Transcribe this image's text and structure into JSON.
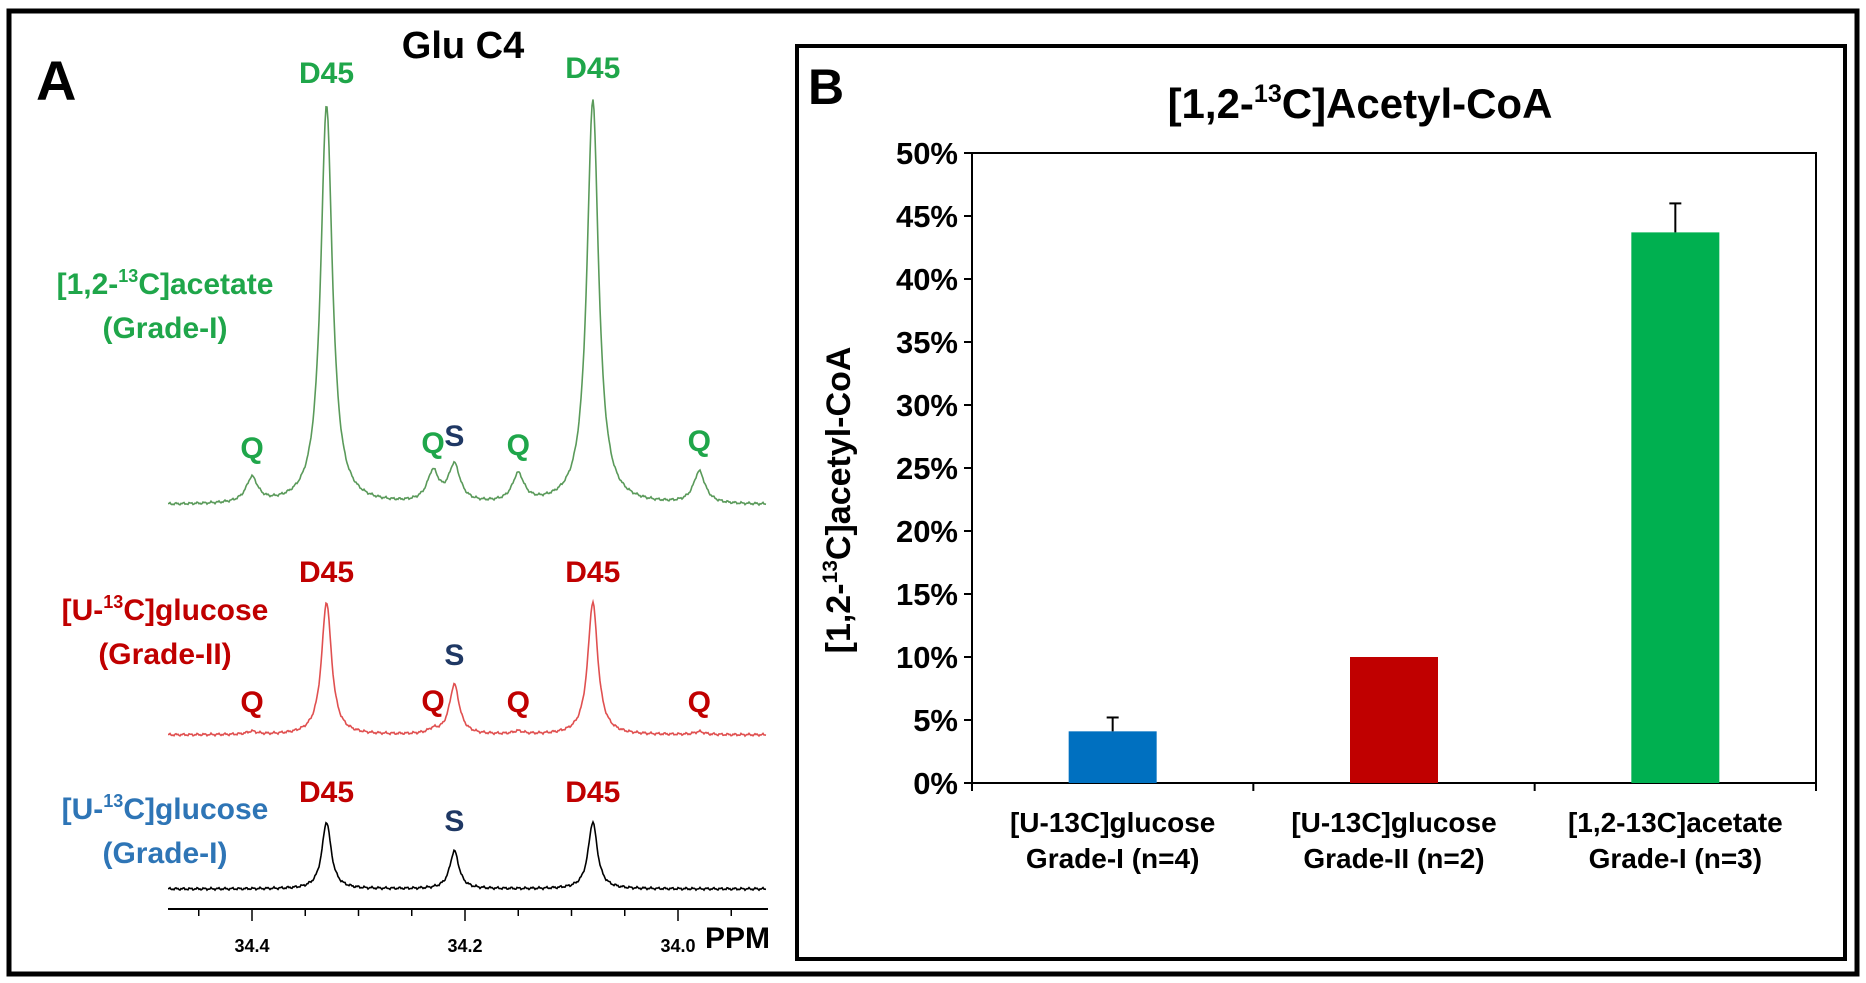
{
  "panel_a": {
    "letter": "A",
    "title": "Glu C4",
    "axis_label": "PPM",
    "spectra": [
      {
        "label_line1": "[1,2-",
        "label_sup": "13",
        "label_line1_end": "C]acetate",
        "label_line2": "(Grade-I)",
        "color": "#1fa64a",
        "line_color": "#5a9a5a",
        "peaks": [
          {
            "ppm": 34.4,
            "label": "Q",
            "label_color": "#1fa64a"
          },
          {
            "ppm": 34.33,
            "label": "D45",
            "label_color": "#1fa64a"
          },
          {
            "ppm": 34.23,
            "label": "Q",
            "label_color": "#1fa64a"
          },
          {
            "ppm": 34.21,
            "label": "S",
            "label_color": "#1f3864"
          },
          {
            "ppm": 34.15,
            "label": "Q",
            "label_color": "#1fa64a"
          },
          {
            "ppm": 34.08,
            "label": "D45",
            "label_color": "#1fa64a"
          },
          {
            "ppm": 33.98,
            "label": "Q",
            "label_color": "#1fa64a"
          }
        ]
      },
      {
        "label_line1": "[U-",
        "label_sup": "13",
        "label_line1_end": "C]glucose",
        "label_line2": "(Grade-II)",
        "color": "#c00000",
        "line_color": "#e05050",
        "peaks": [
          {
            "ppm": 34.4,
            "label": "Q",
            "label_color": "#c00000"
          },
          {
            "ppm": 34.33,
            "label": "D45",
            "label_color": "#c00000"
          },
          {
            "ppm": 34.23,
            "label": "Q",
            "label_color": "#c00000"
          },
          {
            "ppm": 34.21,
            "label": "S",
            "label_color": "#1f3864"
          },
          {
            "ppm": 34.15,
            "label": "Q",
            "label_color": "#c00000"
          },
          {
            "ppm": 34.08,
            "label": "D45",
            "label_color": "#c00000"
          },
          {
            "ppm": 33.98,
            "label": "Q",
            "label_color": "#c00000"
          }
        ]
      },
      {
        "label_line1": "[U-",
        "label_sup": "13",
        "label_line1_end": "C]glucose",
        "label_line2": "(Grade-I)",
        "color": "#2e75b6",
        "line_color": "#000000",
        "peaks": [
          {
            "ppm": 34.33,
            "label": "D45",
            "label_color": "#c00000"
          },
          {
            "ppm": 34.21,
            "label": "S",
            "label_color": "#1f3864"
          },
          {
            "ppm": 34.08,
            "label": "D45",
            "label_color": "#c00000"
          }
        ]
      }
    ],
    "ticks": [
      "34.4",
      "34.2",
      "34.0"
    ]
  },
  "chart_data": {
    "type": "bar",
    "panel_letter": "B",
    "title_prefix": "[1,2-",
    "title_sup": "13",
    "title_suffix": "C]Acetyl-CoA",
    "ylabel_prefix": "[1,2-",
    "ylabel_sup": "13",
    "ylabel_suffix": "C]acetyl-CoA",
    "xlabel": "",
    "ylim": [
      0,
      50
    ],
    "yticks": [
      "0%",
      "5%",
      "10%",
      "15%",
      "20%",
      "25%",
      "30%",
      "35%",
      "40%",
      "45%",
      "50%"
    ],
    "categories": [
      {
        "line1": "[U-13C]glucose",
        "line2": "Grade-I (n=4)"
      },
      {
        "line1": "[U-13C]glucose",
        "line2": "Grade-II (n=2)"
      },
      {
        "line1": "[1,2-13C]acetate",
        "line2": "Grade-I (n=3)"
      }
    ],
    "values": [
      4.1,
      10.0,
      43.7
    ],
    "errors": [
      1.1,
      0,
      2.3
    ],
    "colors": [
      "#0070c0",
      "#c00000",
      "#00b050"
    ]
  }
}
